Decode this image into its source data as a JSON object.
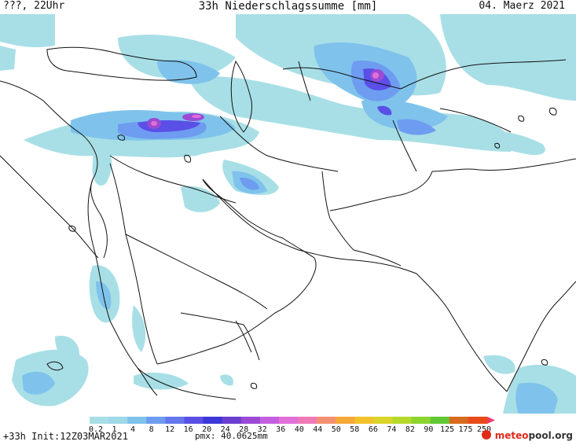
{
  "header": {
    "left": "???, 22Uhr",
    "title": "33h Niederschlagssumme [mm]",
    "date": "04. Maerz 2021"
  },
  "legend": {
    "labels": [
      "0.2",
      "1",
      "4",
      "8",
      "12",
      "16",
      "20",
      "24",
      "28",
      "32",
      "36",
      "40",
      "44",
      "50",
      "58",
      "66",
      "74",
      "82",
      "90",
      "125",
      "175",
      "250"
    ],
    "colors": [
      "#a8dfe6",
      "#9fd8e8",
      "#7fc3ec",
      "#6e9cf0",
      "#6477ec",
      "#5a4fe6",
      "#3d36d8",
      "#6a3fd0",
      "#9a4ad4",
      "#c45fe0",
      "#e070d8",
      "#f07ab8",
      "#f49070",
      "#f6a838",
      "#f2c22a",
      "#d8d42a",
      "#b6d82a",
      "#8cd42e",
      "#62c834",
      "#d86a1e",
      "#e84a1a"
    ],
    "arrow_color": "#f03a6a"
  },
  "footer": {
    "init": "+33h Init:12Z03MAR2021",
    "pmx": "pmx: 40.0625mm"
  },
  "brand": {
    "name_a": "meteo",
    "name_b": "pool.org",
    "logo_color": "#e02a1a"
  },
  "map_colors": {
    "light": "#a8dfe6",
    "medium": "#7fc3ec",
    "blue": "#6e9cf0",
    "dark": "#5a4fe6",
    "purple": "#9a4ad4",
    "magenta": "#e070d8",
    "line": "#111111"
  }
}
